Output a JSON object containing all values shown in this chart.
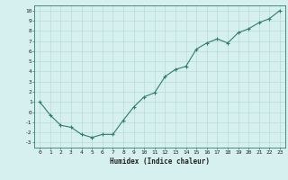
{
  "x": [
    0,
    1,
    2,
    3,
    4,
    5,
    6,
    7,
    8,
    9,
    10,
    11,
    12,
    13,
    14,
    15,
    16,
    17,
    18,
    19,
    20,
    21,
    22,
    23
  ],
  "y": [
    1,
    -0.3,
    -1.3,
    -1.5,
    -2.2,
    -2.5,
    -2.2,
    -2.2,
    -0.8,
    0.5,
    1.5,
    1.9,
    3.5,
    4.2,
    4.5,
    6.2,
    6.8,
    7.2,
    6.8,
    7.8,
    8.2,
    8.8,
    9.2,
    10.0
  ],
  "xlim": [
    -0.5,
    23.5
  ],
  "ylim": [
    -3.5,
    10.5
  ],
  "yticks": [
    -3,
    -2,
    -1,
    0,
    1,
    2,
    3,
    4,
    5,
    6,
    7,
    8,
    9,
    10
  ],
  "xticks": [
    0,
    1,
    2,
    3,
    4,
    5,
    6,
    7,
    8,
    9,
    10,
    11,
    12,
    13,
    14,
    15,
    16,
    17,
    18,
    19,
    20,
    21,
    22,
    23
  ],
  "xlabel": "Humidex (Indice chaleur)",
  "line_color": "#2e7d6e",
  "marker": "+",
  "bg_color": "#d6f0ef",
  "grid_color": "#b8dbd8",
  "spine_color": "#2e7d6e"
}
